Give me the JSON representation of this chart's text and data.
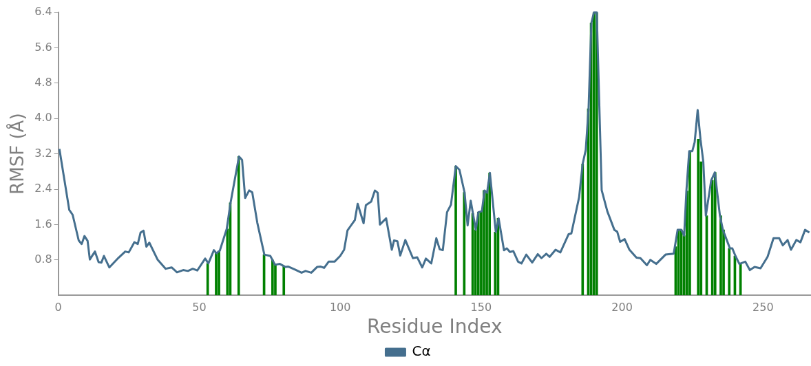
{
  "chart_data": {
    "type": "line",
    "xlabel": "Residue Index",
    "ylabel": "RMSF (Å)",
    "xlim": [
      0,
      267
    ],
    "xticks": [
      0,
      50,
      100,
      150,
      200,
      250
    ],
    "ylim": [
      0,
      6.4
    ],
    "yticks": [
      0.8,
      1.6,
      2.4,
      3.2,
      {
        "value": 4,
        "label": "4.0"
      },
      4.8,
      5.6,
      6.4
    ],
    "grid": false,
    "legend": "bottom",
    "marker": "none",
    "line_style": "solid",
    "series": [
      {
        "name": "Cα",
        "color": "#456f8e",
        "x": [
          0.4,
          3.9,
          5.1,
          7.25,
          8.3,
          9.3,
          10.4,
          11.2,
          13,
          14.3,
          15.3,
          16.2,
          18.1,
          21.4,
          23.75,
          25,
          27,
          28.2,
          29.2,
          30.25,
          31.25,
          32.3,
          35.2,
          38.1,
          40.2,
          42.1,
          44.3,
          46,
          47.7,
          49.3,
          52.1,
          53.25,
          55.2,
          56.1,
          57.3,
          59.75,
          61.1,
          64.1,
          65.2,
          66.3,
          67.7,
          68.8,
          70.6,
          73.1,
          75.2,
          76.9,
          78.6,
          80.6,
          81.5,
          84,
          86.3,
          87.7,
          89.75,
          91.8,
          93,
          94.3,
          95.9,
          98,
          100,
          101.4,
          102.6,
          105.2,
          106.2,
          108.3,
          109.1,
          111,
          112.3,
          113.3,
          114.1,
          116.3,
          118.3,
          119.1,
          120.3,
          121.3,
          123.1,
          125.8,
          127.3,
          129.1,
          130.4,
          132.3,
          134.1,
          135.3,
          136.4,
          137.9,
          139.3,
          141,
          142.3,
          144.1,
          145.2,
          146.3,
          148.1,
          149,
          150.25,
          151.2,
          152.1,
          153.1,
          155.2,
          156.2,
          158.1,
          159.1,
          160.2,
          161.4,
          163.1,
          164.3,
          166,
          168.1,
          170.1,
          171.4,
          173.1,
          174.3,
          176.4,
          178.1,
          181,
          182,
          184.75,
          186,
          187.1,
          188.1,
          189.1,
          190,
          191,
          192.75,
          194.75,
          197.25,
          198.25,
          199.3,
          200.9,
          202.6,
          205.1,
          206.5,
          208.8,
          210,
          212.1,
          215.4,
          218.3,
          219.7,
          221,
          222,
          222.8,
          223.8,
          224.9,
          225.75,
          226.8,
          227.8,
          228.8,
          229.7,
          231.6,
          232.9,
          234.7,
          235.75,
          238.25,
          239.1,
          240.2,
          241.6,
          243.7,
          245.3,
          247,
          249.1,
          251.6,
          253.7,
          255.75,
          257,
          258.7,
          259.9,
          261.8,
          263.25,
          264.9,
          266.4
        ],
        "values": [
          3.31,
          1.93,
          1.82,
          1.24,
          1.16,
          1.34,
          1.23,
          0.81,
          0.99,
          0.75,
          0.74,
          0.89,
          0.63,
          0.85,
          0.99,
          0.97,
          1.2,
          1.16,
          1.42,
          1.46,
          1.1,
          1.19,
          0.81,
          0.6,
          0.63,
          0.52,
          0.57,
          0.55,
          0.6,
          0.56,
          0.83,
          0.72,
          1.02,
          0.95,
          1.01,
          1.5,
          2.09,
          3.14,
          3.06,
          2.2,
          2.37,
          2.33,
          1.64,
          0.92,
          0.89,
          0.69,
          0.71,
          0.64,
          0.65,
          0.58,
          0.51,
          0.55,
          0.51,
          0.64,
          0.65,
          0.62,
          0.76,
          0.76,
          0.89,
          1.03,
          1.47,
          1.7,
          2.07,
          1.63,
          2.04,
          2.12,
          2.37,
          2.32,
          1.6,
          1.74,
          1.03,
          1.24,
          1.22,
          0.9,
          1.25,
          0.84,
          0.86,
          0.63,
          0.83,
          0.72,
          1.29,
          1.04,
          1.02,
          1.88,
          2.05,
          2.92,
          2.84,
          2.33,
          1.58,
          2.14,
          1.48,
          1.88,
          1.9,
          2.37,
          2.32,
          2.77,
          1.43,
          1.74,
          1.02,
          1.06,
          0.98,
          1.0,
          0.76,
          0.72,
          0.92,
          0.74,
          0.93,
          0.84,
          0.94,
          0.87,
          1.03,
          0.97,
          1.38,
          1.4,
          2.22,
          2.97,
          3.29,
          4.22,
          6.16,
          6.4,
          6.4,
          2.38,
          1.9,
          1.48,
          1.44,
          1.21,
          1.27,
          1.03,
          0.85,
          0.84,
          0.68,
          0.8,
          0.71,
          0.92,
          0.94,
          1.48,
          1.48,
          1.35,
          2.36,
          3.26,
          3.26,
          3.47,
          4.19,
          3.53,
          3.02,
          1.8,
          2.6,
          2.78,
          1.8,
          1.48,
          1.06,
          1.06,
          0.89,
          0.71,
          0.76,
          0.57,
          0.64,
          0.61,
          0.87,
          1.29,
          1.29,
          1.13,
          1.25,
          1.03,
          1.25,
          1.2,
          1.48,
          1.42
        ]
      },
      {
        "type": "bar",
        "color": "#008000",
        "x": [
          53,
          56,
          57,
          60,
          61,
          64,
          73,
          76,
          77,
          80,
          141,
          144,
          147,
          148,
          149,
          150,
          151,
          152,
          153,
          155,
          156,
          186,
          188,
          189,
          190,
          191,
          219,
          220,
          221,
          222,
          223,
          224,
          227,
          228,
          230,
          232,
          233,
          235,
          236,
          238,
          240,
          242
        ],
        "values": [
          0.72,
          0.95,
          1.0,
          1.5,
          2.09,
          3.14,
          0.92,
          0.8,
          0.7,
          0.65,
          2.92,
          2.33,
          1.85,
          1.48,
          1.88,
          1.9,
          2.37,
          2.32,
          2.77,
          1.43,
          1.74,
          2.97,
          4.22,
          6.16,
          6.4,
          6.4,
          1.1,
          1.48,
          1.48,
          1.35,
          2.36,
          3.26,
          3.53,
          3.02,
          1.8,
          2.6,
          2.78,
          1.8,
          1.48,
          1.06,
          0.89,
          0.71
        ]
      }
    ]
  }
}
